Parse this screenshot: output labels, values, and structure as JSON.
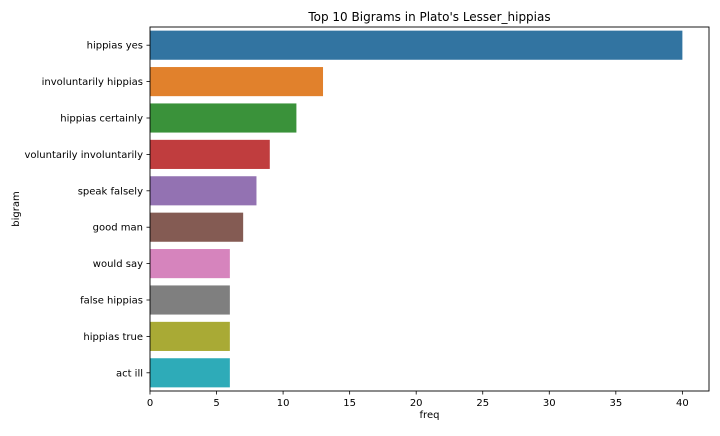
{
  "chart_data": {
    "type": "bar",
    "orientation": "horizontal",
    "title": "Top 10 Bigrams in Plato's Lesser_hippias",
    "xlabel": "freq",
    "ylabel": "bigram",
    "xlim": [
      0,
      42
    ],
    "xticks": [
      0,
      5,
      10,
      15,
      20,
      25,
      30,
      35,
      40
    ],
    "grid": false,
    "categories": [
      "hippias yes",
      "involuntarily hippias",
      "hippias certainly",
      "voluntarily involuntarily",
      "speak falsely",
      "good man",
      "would say",
      "false hippias",
      "hippias true",
      "act ill"
    ],
    "values": [
      40,
      13,
      11,
      9,
      8,
      7,
      6,
      6,
      6,
      6
    ],
    "colors": [
      "#3274a1",
      "#e1812c",
      "#3a923a",
      "#c03d3e",
      "#9372b2",
      "#845b53",
      "#d684bd",
      "#7f7f7f",
      "#a9aa35",
      "#2eabb8"
    ]
  }
}
